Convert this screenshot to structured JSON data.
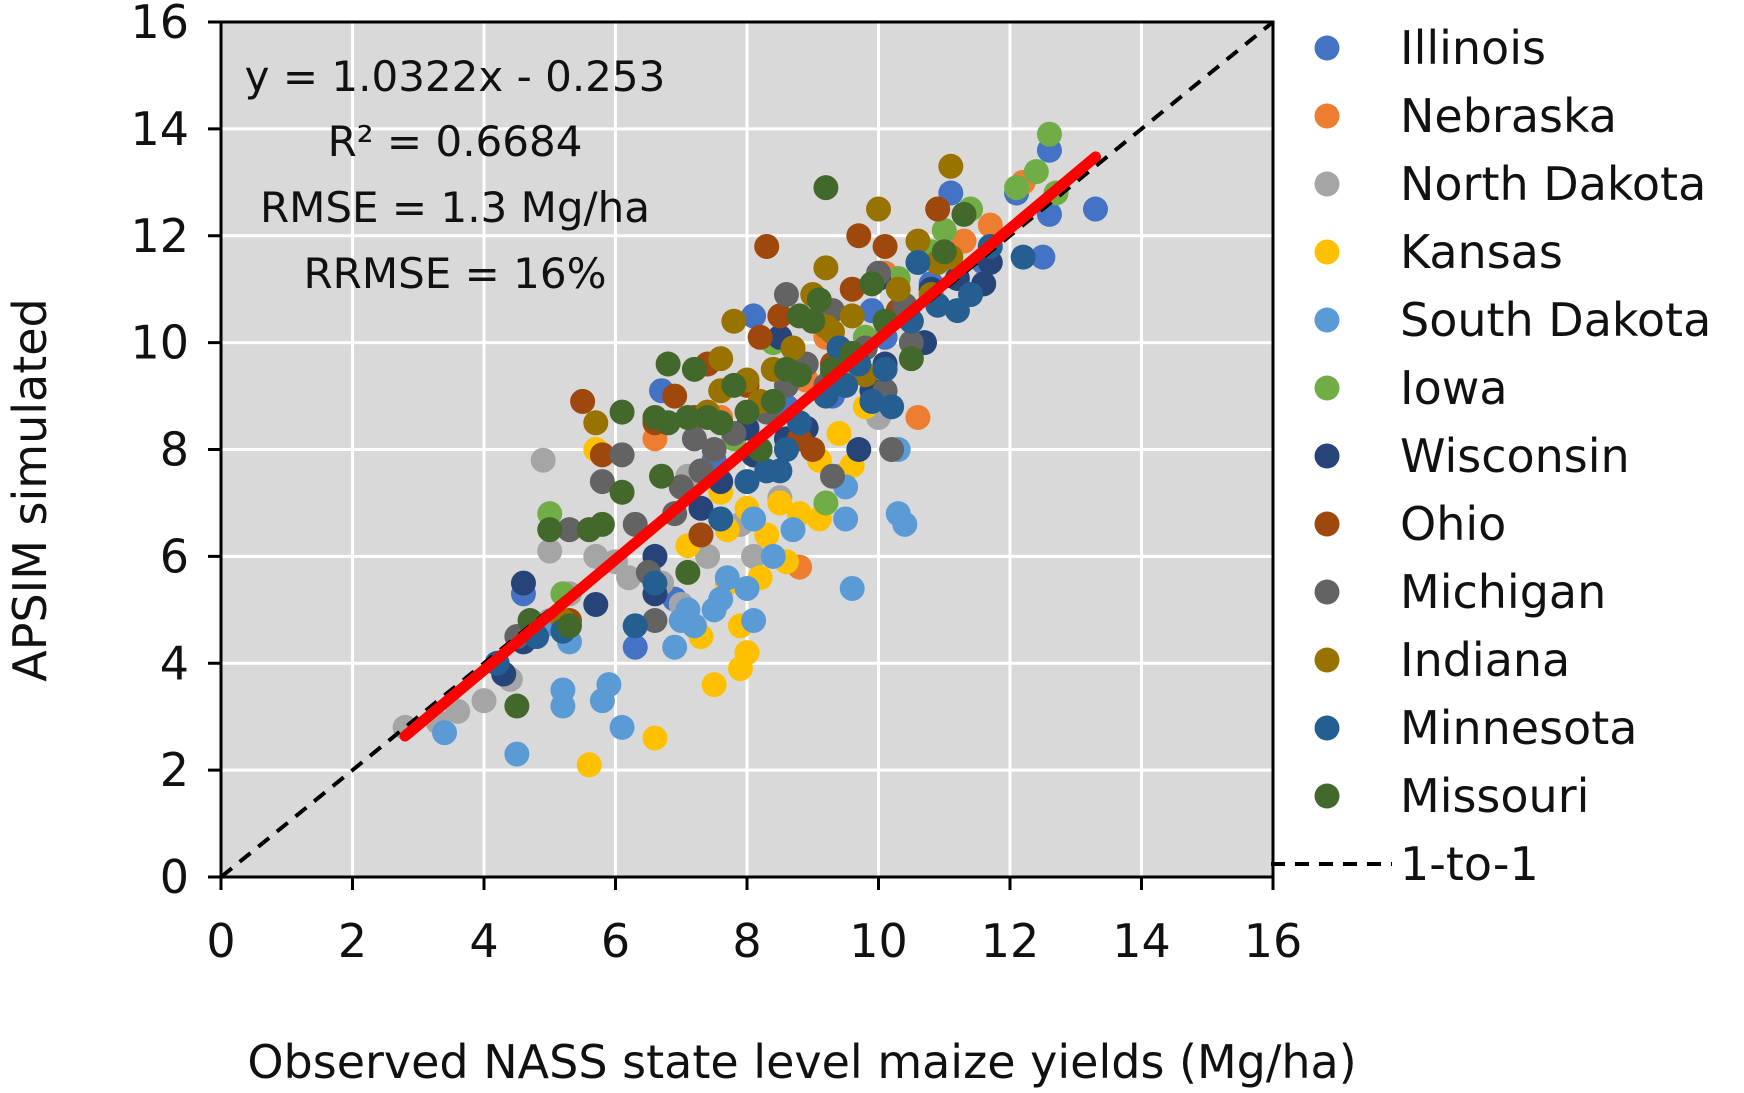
{
  "chart_data": {
    "type": "scatter",
    "title": "",
    "xlabel": "Observed NASS state level maize yields (Mg/ha)",
    "ylabel": "APSIM simulated",
    "xlim": [
      0,
      16
    ],
    "ylim": [
      0,
      16
    ],
    "xticks": [
      0,
      2,
      4,
      6,
      8,
      10,
      12,
      14,
      16
    ],
    "yticks": [
      0,
      2,
      4,
      6,
      8,
      10,
      12,
      14,
      16
    ],
    "grid": true,
    "legend_position": "right",
    "annotations": [
      "y = 1.0322x - 0.253",
      "R² = 0.6684",
      "RMSE = 1.3 Mg/ha",
      "RRMSE = 16%"
    ],
    "regression": {
      "slope": 1.0322,
      "intercept": -0.253,
      "x_range": [
        2.8,
        13.3
      ],
      "color": "#ff0000"
    },
    "one_to_one": {
      "label": "1-to-1",
      "x_range": [
        0,
        16
      ]
    },
    "series": [
      {
        "name": "Illinois",
        "color": "#4472c4",
        "points": [
          [
            12.6,
            13.6
          ],
          [
            13.3,
            12.5
          ],
          [
            12.6,
            12.4
          ],
          [
            12.5,
            11.6
          ],
          [
            11.6,
            11.5
          ],
          [
            11.1,
            12.8
          ],
          [
            10.1,
            10.1
          ],
          [
            9.6,
            9.5
          ],
          [
            9.3,
            9.0
          ],
          [
            8.6,
            8.8
          ],
          [
            8.1,
            10.5
          ],
          [
            7.5,
            7.8
          ],
          [
            6.7,
            9.1
          ],
          [
            6.3,
            4.3
          ],
          [
            6.9,
            5.2
          ],
          [
            7.3,
            6.4
          ],
          [
            4.6,
            5.3
          ],
          [
            10.8,
            11.1
          ],
          [
            12.1,
            12.8
          ],
          [
            9.9,
            10.6
          ]
        ]
      },
      {
        "name": "Nebraska",
        "color": "#ed7d31",
        "points": [
          [
            12.2,
            13.0
          ],
          [
            11.7,
            12.2
          ],
          [
            10.6,
            8.6
          ],
          [
            10.1,
            11.3
          ],
          [
            9.5,
            9.6
          ],
          [
            8.9,
            9.3
          ],
          [
            8.8,
            5.8
          ],
          [
            8.1,
            7.9
          ],
          [
            6.6,
            8.2
          ],
          [
            7.6,
            8.6
          ],
          [
            9.2,
            10.1
          ],
          [
            11.3,
            11.9
          ],
          [
            10.3,
            10.5
          ]
        ]
      },
      {
        "name": "North Dakota",
        "color": "#a5a5a5",
        "points": [
          [
            2.8,
            2.8
          ],
          [
            3.3,
            2.9
          ],
          [
            3.6,
            3.1
          ],
          [
            4.0,
            3.3
          ],
          [
            4.4,
            3.7
          ],
          [
            5.0,
            4.8
          ],
          [
            4.9,
            7.8
          ],
          [
            5.0,
            6.1
          ],
          [
            5.3,
            5.3
          ],
          [
            5.7,
            6.0
          ],
          [
            6.0,
            5.9
          ],
          [
            6.2,
            5.6
          ],
          [
            6.7,
            5.5
          ],
          [
            7.0,
            5.1
          ],
          [
            7.4,
            6.0
          ],
          [
            8.1,
            6.0
          ],
          [
            7.9,
            6.6
          ],
          [
            7.1,
            7.5
          ],
          [
            8.5,
            7.1
          ],
          [
            9.4,
            7.5
          ],
          [
            10.0,
            8.6
          ]
        ]
      },
      {
        "name": "Kansas",
        "color": "#ffc000",
        "points": [
          [
            5.6,
            2.1
          ],
          [
            6.6,
            2.6
          ],
          [
            7.5,
            3.6
          ],
          [
            7.9,
            3.9
          ],
          [
            8.0,
            4.2
          ],
          [
            7.9,
            4.7
          ],
          [
            7.3,
            4.5
          ],
          [
            7.7,
            5.5
          ],
          [
            8.2,
            5.6
          ],
          [
            7.1,
            6.2
          ],
          [
            7.7,
            6.5
          ],
          [
            8.3,
            6.4
          ],
          [
            8.0,
            6.9
          ],
          [
            7.6,
            7.2
          ],
          [
            8.5,
            7.0
          ],
          [
            9.1,
            6.7
          ],
          [
            8.8,
            6.8
          ],
          [
            9.6,
            7.7
          ],
          [
            9.1,
            7.8
          ],
          [
            8.6,
            5.9
          ],
          [
            5.7,
            8.0
          ],
          [
            9.8,
            8.8
          ],
          [
            9.4,
            8.3
          ]
        ]
      },
      {
        "name": "South Dakota",
        "color": "#5b9bd5",
        "points": [
          [
            3.4,
            2.7
          ],
          [
            4.5,
            2.3
          ],
          [
            5.2,
            3.2
          ],
          [
            5.2,
            3.5
          ],
          [
            5.8,
            3.3
          ],
          [
            5.9,
            3.6
          ],
          [
            6.1,
            2.8
          ],
          [
            6.3,
            4.7
          ],
          [
            6.9,
            4.3
          ],
          [
            7.1,
            5.0
          ],
          [
            7.2,
            4.7
          ],
          [
            7.5,
            5.0
          ],
          [
            7.6,
            5.2
          ],
          [
            8.1,
            4.8
          ],
          [
            8.0,
            5.4
          ],
          [
            8.1,
            6.7
          ],
          [
            8.4,
            6.0
          ],
          [
            8.7,
            6.5
          ],
          [
            9.6,
            5.4
          ],
          [
            9.5,
            6.7
          ],
          [
            10.3,
            6.8
          ],
          [
            10.4,
            6.6
          ],
          [
            10.3,
            8.0
          ],
          [
            4.9,
            4.7
          ],
          [
            5.3,
            4.4
          ],
          [
            7.7,
            5.6
          ],
          [
            9.5,
            7.3
          ],
          [
            7.0,
            4.8
          ]
        ]
      },
      {
        "name": "Iowa",
        "color": "#70ad47",
        "points": [
          [
            12.6,
            13.9
          ],
          [
            12.4,
            13.2
          ],
          [
            12.7,
            12.8
          ],
          [
            12.1,
            12.9
          ],
          [
            11.4,
            12.5
          ],
          [
            11.0,
            12.1
          ],
          [
            10.8,
            11.7
          ],
          [
            10.3,
            11.2
          ],
          [
            9.8,
            10.1
          ],
          [
            8.6,
            9.5
          ],
          [
            8.4,
            10.0
          ],
          [
            9.2,
            7.0
          ],
          [
            5.0,
            6.8
          ],
          [
            5.2,
            5.3
          ],
          [
            7.8,
            8.2
          ],
          [
            9.5,
            9.4
          ]
        ]
      },
      {
        "name": "Wisconsin",
        "color": "#264478",
        "points": [
          [
            4.3,
            3.8
          ],
          [
            4.6,
            4.4
          ],
          [
            4.6,
            5.5
          ],
          [
            5.7,
            5.1
          ],
          [
            6.6,
            5.3
          ],
          [
            6.6,
            6.0
          ],
          [
            7.3,
            6.9
          ],
          [
            7.6,
            7.4
          ],
          [
            8.0,
            8.4
          ],
          [
            8.1,
            7.9
          ],
          [
            8.6,
            8.2
          ],
          [
            8.9,
            8.4
          ],
          [
            9.3,
            9.4
          ],
          [
            9.7,
            8.0
          ],
          [
            9.9,
            9.1
          ],
          [
            10.1,
            9.6
          ],
          [
            10.4,
            10.5
          ],
          [
            10.7,
            10.0
          ],
          [
            10.8,
            11.0
          ],
          [
            11.2,
            11.2
          ],
          [
            11.6,
            11.1
          ],
          [
            11.7,
            11.5
          ],
          [
            10.0,
            11.2
          ],
          [
            8.5,
            10.1
          ]
        ]
      },
      {
        "name": "Ohio",
        "color": "#9e480e",
        "points": [
          [
            5.5,
            8.9
          ],
          [
            5.8,
            7.9
          ],
          [
            7.3,
            6.4
          ],
          [
            6.6,
            8.5
          ],
          [
            6.9,
            9.0
          ],
          [
            7.2,
            8.6
          ],
          [
            7.4,
            9.6
          ],
          [
            8.0,
            9.2
          ],
          [
            8.3,
            11.8
          ],
          [
            8.5,
            10.5
          ],
          [
            8.8,
            8.2
          ],
          [
            9.0,
            8.0
          ],
          [
            9.3,
            9.6
          ],
          [
            9.6,
            11.0
          ],
          [
            9.7,
            12.0
          ],
          [
            10.1,
            11.8
          ],
          [
            10.3,
            10.6
          ],
          [
            10.9,
            12.5
          ],
          [
            5.3,
            4.8
          ],
          [
            8.2,
            10.1
          ]
        ]
      },
      {
        "name": "Michigan",
        "color": "#636363",
        "points": [
          [
            4.5,
            4.5
          ],
          [
            5.3,
            6.5
          ],
          [
            5.8,
            7.4
          ],
          [
            6.1,
            7.9
          ],
          [
            6.3,
            6.6
          ],
          [
            6.5,
            5.7
          ],
          [
            6.6,
            4.8
          ],
          [
            6.9,
            6.8
          ],
          [
            7.0,
            7.3
          ],
          [
            7.3,
            7.6
          ],
          [
            7.5,
            8.0
          ],
          [
            7.2,
            8.2
          ],
          [
            7.8,
            8.3
          ],
          [
            8.3,
            8.7
          ],
          [
            8.6,
            9.2
          ],
          [
            8.9,
            9.6
          ],
          [
            9.2,
            9.2
          ],
          [
            9.5,
            9.8
          ],
          [
            9.8,
            9.9
          ],
          [
            10.1,
            9.1
          ],
          [
            10.2,
            8.0
          ],
          [
            10.5,
            10.0
          ],
          [
            10.4,
            10.7
          ],
          [
            8.6,
            10.9
          ],
          [
            9.3,
            10.6
          ],
          [
            10.0,
            11.3
          ],
          [
            9.3,
            7.5
          ]
        ]
      },
      {
        "name": "Indiana",
        "color": "#997300",
        "points": [
          [
            5.2,
            4.8
          ],
          [
            5.7,
            8.5
          ],
          [
            7.4,
            8.7
          ],
          [
            7.6,
            9.1
          ],
          [
            7.6,
            9.7
          ],
          [
            7.8,
            10.4
          ],
          [
            8.0,
            9.3
          ],
          [
            8.2,
            8.9
          ],
          [
            8.4,
            9.5
          ],
          [
            8.7,
            9.9
          ],
          [
            9.0,
            10.9
          ],
          [
            9.2,
            11.4
          ],
          [
            9.3,
            10.2
          ],
          [
            9.6,
            10.5
          ],
          [
            10.0,
            12.5
          ],
          [
            10.3,
            11.0
          ],
          [
            10.6,
            11.9
          ],
          [
            10.9,
            11.5
          ],
          [
            11.1,
            13.3
          ],
          [
            10.8,
            10.9
          ],
          [
            11.1,
            11.6
          ],
          [
            9.8,
            9.4
          ],
          [
            9.2,
            10.3
          ]
        ]
      },
      {
        "name": "Minnesota",
        "color": "#255e91",
        "points": [
          [
            4.2,
            4.0
          ],
          [
            4.8,
            4.5
          ],
          [
            5.2,
            4.6
          ],
          [
            6.3,
            4.7
          ],
          [
            6.6,
            5.5
          ],
          [
            7.6,
            6.7
          ],
          [
            8.0,
            7.4
          ],
          [
            8.3,
            7.6
          ],
          [
            8.6,
            8.0
          ],
          [
            8.8,
            8.5
          ],
          [
            9.2,
            9.0
          ],
          [
            9.5,
            9.2
          ],
          [
            9.7,
            9.6
          ],
          [
            9.9,
            8.9
          ],
          [
            10.1,
            9.5
          ],
          [
            10.2,
            8.8
          ],
          [
            10.5,
            10.4
          ],
          [
            10.9,
            10.7
          ],
          [
            11.2,
            10.6
          ],
          [
            11.4,
            10.9
          ],
          [
            11.7,
            11.8
          ],
          [
            12.2,
            11.6
          ],
          [
            9.4,
            9.9
          ],
          [
            8.5,
            7.6
          ],
          [
            10.6,
            11.5
          ]
        ]
      },
      {
        "name": "Missouri",
        "color": "#43682b",
        "points": [
          [
            4.5,
            3.2
          ],
          [
            4.7,
            4.8
          ],
          [
            5.3,
            4.7
          ],
          [
            5.0,
            6.5
          ],
          [
            5.6,
            6.5
          ],
          [
            5.8,
            6.6
          ],
          [
            6.1,
            7.2
          ],
          [
            6.1,
            8.7
          ],
          [
            6.6,
            8.6
          ],
          [
            6.7,
            7.5
          ],
          [
            7.1,
            5.7
          ],
          [
            6.8,
            8.5
          ],
          [
            6.8,
            9.6
          ],
          [
            7.2,
            9.5
          ],
          [
            7.1,
            8.6
          ],
          [
            7.4,
            8.6
          ],
          [
            7.6,
            8.5
          ],
          [
            7.8,
            9.2
          ],
          [
            8.0,
            8.7
          ],
          [
            8.4,
            8.9
          ],
          [
            8.6,
            9.5
          ],
          [
            8.8,
            9.4
          ],
          [
            9.0,
            10.4
          ],
          [
            9.2,
            12.9
          ],
          [
            9.1,
            10.8
          ],
          [
            9.3,
            9.5
          ],
          [
            9.6,
            9.8
          ],
          [
            9.9,
            11.1
          ],
          [
            10.1,
            10.4
          ],
          [
            10.5,
            9.7
          ],
          [
            11.0,
            11.7
          ],
          [
            11.3,
            12.4
          ],
          [
            8.8,
            10.5
          ],
          [
            8.2,
            8.0
          ]
        ]
      }
    ]
  }
}
